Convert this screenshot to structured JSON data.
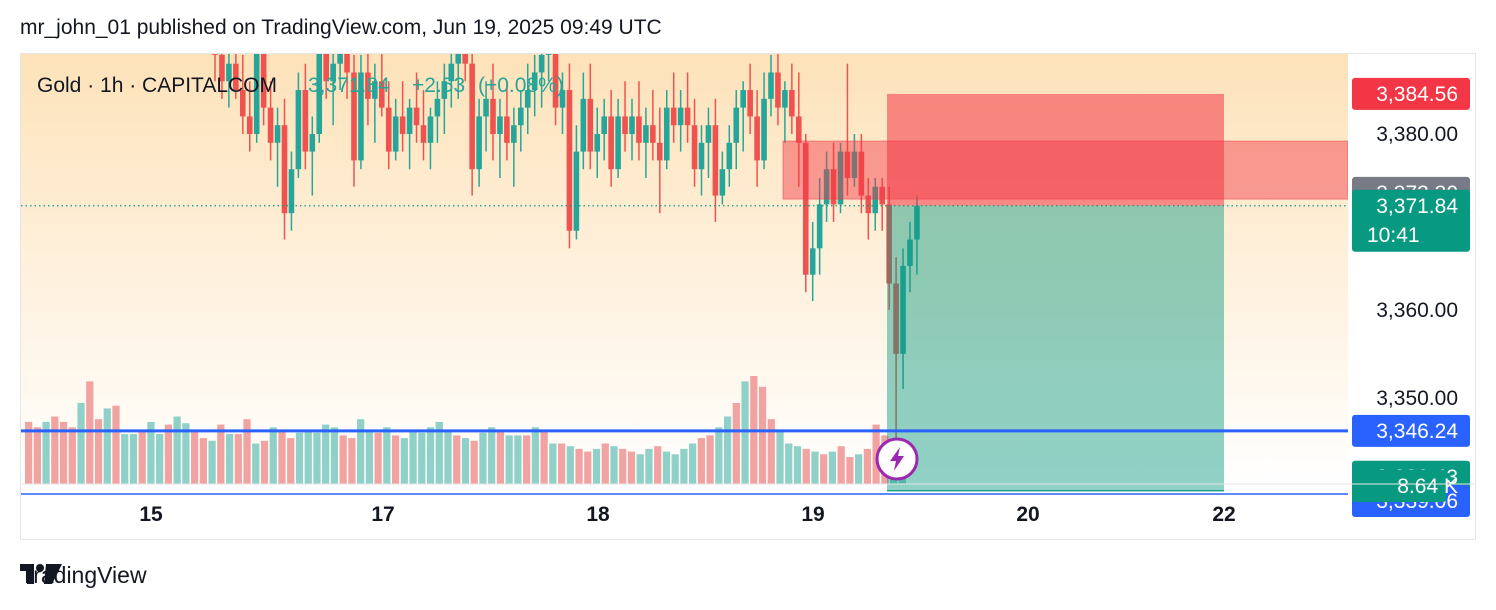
{
  "header": {
    "text": "mr_john_01 published on TradingView.com, Jun 19, 2025 09:49 UTC"
  },
  "legend": {
    "title": "Gold · 1h · CAPITALCOM",
    "price": "3,371.84",
    "change": "+2.53",
    "change_pct": "(+0.08%)"
  },
  "footer": {
    "brand": "TradingView"
  },
  "colors": {
    "up": "#26a69a",
    "down": "#ef5350",
    "up_volume": "#8fd0c8",
    "down_volume": "#f1a3a1",
    "accent_blue": "#2962ff",
    "position_red": "#f23645",
    "position_green": "#089981",
    "current_price": "#089981",
    "grey_label": "#787b86",
    "lightning": "#9c27b0"
  },
  "icons": {
    "lightning": "lightning-icon",
    "logo": "tradingview-logo-icon"
  },
  "chart_data": {
    "type": "candlestick",
    "title": "Gold · 1h · CAPITALCOM",
    "x_ticks": [
      "15",
      "17",
      "18",
      "19",
      "20",
      "22"
    ],
    "y_ticks": [
      "3,380.00",
      "3,360.00",
      "3,350.00"
    ],
    "ylim": [
      3340.2,
      3389.1
    ],
    "last_price": 3371.84,
    "countdown": "10:41",
    "price_labels": [
      {
        "text": "3,384.56",
        "value": 3384.56,
        "kind": "position-stop"
      },
      {
        "text": "3,373.30",
        "value": 3373.3,
        "kind": "zone-level"
      },
      {
        "text": "3,371.84",
        "value": 3371.84,
        "kind": "last-price"
      },
      {
        "text": "3,346.24",
        "value": 3346.24,
        "kind": "horizontal-line"
      },
      {
        "text": "3,339.43",
        "value": 3339.43,
        "kind": "position-target"
      },
      {
        "text": "3,339.06",
        "value": 3339.06,
        "kind": "horizontal-line"
      },
      {
        "text": "8.64 K",
        "kind": "volume"
      }
    ],
    "horizontal_lines": [
      3346.24,
      3339.06
    ],
    "supply_zone": {
      "top": 3379.2,
      "bottom": 3372.6
    },
    "short_position": {
      "entry": 3371.84,
      "stop": 3384.56,
      "target": 3339.43
    },
    "grid": false,
    "volume_shown": true,
    "candles": [
      [
        3396,
        3399,
        3386,
        3389
      ],
      [
        3389,
        3393,
        3384,
        3386
      ],
      [
        3386,
        3391,
        3383,
        3388
      ],
      [
        3388,
        3392,
        3384,
        3385
      ],
      [
        3385,
        3389,
        3380,
        3382
      ],
      [
        3382,
        3386,
        3378,
        3380
      ],
      [
        3380,
        3391,
        3379,
        3390
      ],
      [
        3390,
        3392,
        3381,
        3383
      ],
      [
        3383,
        3386,
        3377,
        3379
      ],
      [
        3379,
        3383,
        3374,
        3381
      ],
      [
        3381,
        3384,
        3368,
        3371
      ],
      [
        3371,
        3378,
        3369,
        3376
      ],
      [
        3376,
        3387,
        3375,
        3385
      ],
      [
        3385,
        3388,
        3376,
        3378
      ],
      [
        3378,
        3382,
        3373,
        3380
      ],
      [
        3380,
        3392,
        3379,
        3390
      ],
      [
        3390,
        3393,
        3384,
        3386
      ],
      [
        3386,
        3390,
        3381,
        3388
      ],
      [
        3388,
        3393,
        3385,
        3391
      ],
      [
        3391,
        3394,
        3384,
        3387
      ],
      [
        3387,
        3389,
        3374,
        3377
      ],
      [
        3377,
        3389,
        3376,
        3387
      ],
      [
        3387,
        3390,
        3381,
        3384
      ],
      [
        3384,
        3388,
        3379,
        3386
      ],
      [
        3386,
        3390,
        3382,
        3383
      ],
      [
        3383,
        3386,
        3376,
        3378
      ],
      [
        3378,
        3384,
        3377,
        3382
      ],
      [
        3382,
        3386,
        3378,
        3380
      ],
      [
        3380,
        3384,
        3376,
        3383
      ],
      [
        3383,
        3387,
        3379,
        3381
      ],
      [
        3381,
        3385,
        3377,
        3379
      ],
      [
        3379,
        3383,
        3376,
        3382
      ],
      [
        3382,
        3386,
        3379,
        3384
      ],
      [
        3384,
        3388,
        3380,
        3386
      ],
      [
        3386,
        3390,
        3383,
        3388
      ],
      [
        3388,
        3392,
        3384,
        3390
      ],
      [
        3390,
        3393,
        3386,
        3388
      ],
      [
        3388,
        3390,
        3373,
        3376
      ],
      [
        3376,
        3384,
        3374,
        3382
      ],
      [
        3382,
        3386,
        3378,
        3384
      ],
      [
        3384,
        3388,
        3377,
        3380
      ],
      [
        3380,
        3384,
        3375,
        3382
      ],
      [
        3382,
        3386,
        3377,
        3379
      ],
      [
        3379,
        3383,
        3374,
        3381
      ],
      [
        3381,
        3385,
        3378,
        3383
      ],
      [
        3383,
        3388,
        3380,
        3385
      ],
      [
        3385,
        3389,
        3382,
        3387
      ],
      [
        3387,
        3391,
        3383,
        3389
      ],
      [
        3389,
        3393,
        3386,
        3391
      ],
      [
        3391,
        3394,
        3381,
        3383
      ],
      [
        3383,
        3387,
        3380,
        3385
      ],
      [
        3385,
        3388,
        3367,
        3369
      ],
      [
        3369,
        3381,
        3368,
        3378
      ],
      [
        3378,
        3387,
        3376,
        3384
      ],
      [
        3384,
        3388,
        3376,
        3378
      ],
      [
        3378,
        3383,
        3375,
        3380
      ],
      [
        3380,
        3384,
        3377,
        3382
      ],
      [
        3382,
        3385,
        3374,
        3376
      ],
      [
        3376,
        3384,
        3375,
        3382
      ],
      [
        3382,
        3386,
        3378,
        3380
      ],
      [
        3380,
        3384,
        3377,
        3382
      ],
      [
        3382,
        3386,
        3377,
        3379
      ],
      [
        3379,
        3383,
        3375,
        3381
      ],
      [
        3381,
        3385,
        3377,
        3379
      ],
      [
        3379,
        3383,
        3371,
        3377
      ],
      [
        3377,
        3385,
        3376,
        3383
      ],
      [
        3383,
        3387,
        3379,
        3381
      ],
      [
        3381,
        3385,
        3378,
        3383
      ],
      [
        3383,
        3387,
        3379,
        3381
      ],
      [
        3381,
        3384,
        3374,
        3376
      ],
      [
        3376,
        3381,
        3373,
        3379
      ],
      [
        3379,
        3383,
        3375,
        3381
      ],
      [
        3381,
        3384,
        3370,
        3373
      ],
      [
        3373,
        3378,
        3372,
        3376
      ],
      [
        3376,
        3381,
        3374,
        3379
      ],
      [
        3379,
        3385,
        3376,
        3383
      ],
      [
        3383,
        3386,
        3378,
        3385
      ],
      [
        3385,
        3388,
        3380,
        3382
      ],
      [
        3382,
        3385,
        3374,
        3377
      ],
      [
        3377,
        3387,
        3376,
        3384
      ],
      [
        3384,
        3389,
        3382,
        3387
      ],
      [
        3387,
        3390,
        3381,
        3383
      ],
      [
        3383,
        3386,
        3379,
        3385
      ],
      [
        3385,
        3388,
        3380,
        3382
      ],
      [
        3382,
        3387,
        3374,
        3379
      ],
      [
        3379,
        3380,
        3362,
        3364
      ],
      [
        3364,
        3370,
        3361,
        3367
      ],
      [
        3367,
        3375,
        3364,
        3372
      ],
      [
        3372,
        3378,
        3370,
        3376
      ],
      [
        3376,
        3379,
        3370,
        3372
      ],
      [
        3372,
        3379,
        3371,
        3378
      ],
      [
        3378,
        3388,
        3373,
        3375
      ],
      [
        3375,
        3380,
        3374,
        3378
      ],
      [
        3378,
        3380,
        3371,
        3373
      ],
      [
        3373,
        3375,
        3368,
        3371
      ],
      [
        3371,
        3375,
        3369,
        3374
      ],
      [
        3374,
        3375,
        3369,
        3372
      ],
      [
        3372,
        3374,
        3360,
        3363
      ],
      [
        3363,
        3366,
        3343,
        3355
      ],
      [
        3355,
        3367,
        3351,
        3365
      ],
      [
        3365,
        3370,
        3362,
        3368
      ],
      [
        3368,
        3373,
        3364,
        3371.84
      ]
    ],
    "volumes": [
      46,
      42,
      46,
      50,
      46,
      42,
      60,
      76,
      48,
      56,
      58,
      37,
      37,
      40,
      46,
      37,
      44,
      50,
      45,
      40,
      34,
      32,
      44,
      37,
      37,
      48,
      30,
      32,
      42,
      40,
      34,
      38,
      40,
      38,
      44,
      42,
      36,
      34,
      48,
      40,
      38,
      42,
      36,
      34,
      40,
      38,
      42,
      46,
      40,
      36,
      34,
      32,
      38,
      42,
      40,
      36,
      36,
      36,
      42,
      40,
      30,
      30,
      28,
      26,
      24,
      26,
      30,
      28,
      26,
      24,
      22,
      26,
      28,
      24,
      22,
      26,
      30,
      34,
      36,
      42,
      50,
      60,
      76,
      80,
      72,
      48,
      40,
      30,
      28,
      26,
      24,
      22,
      24,
      28,
      20,
      22,
      26,
      44,
      36,
      30,
      26
    ]
  }
}
